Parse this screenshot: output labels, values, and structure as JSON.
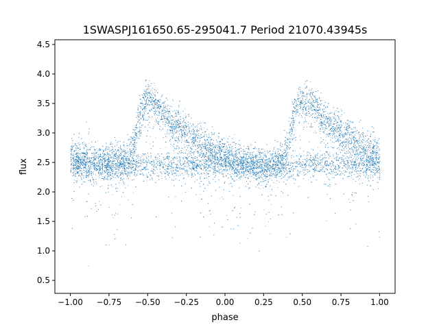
{
  "chart_data": {
    "type": "scatter",
    "title": "1SWASPJ161650.65-295041.7 Period 21070.43945s",
    "xlabel": "phase",
    "ylabel": "flux",
    "xlim": [
      -1.1,
      1.1
    ],
    "ylim": [
      0.28,
      4.58
    ],
    "x_ticks": [
      -1.0,
      -0.75,
      -0.5,
      -0.25,
      0.0,
      0.25,
      0.5,
      0.75,
      1.0
    ],
    "x_tick_labels": [
      "−1.00",
      "−0.75",
      "−0.50",
      "−0.25",
      "0.00",
      "0.25",
      "0.50",
      "0.75",
      "1.00"
    ],
    "y_ticks": [
      0.5,
      1.0,
      1.5,
      2.0,
      2.5,
      3.0,
      3.5,
      4.0,
      4.5
    ],
    "y_tick_labels": [
      "0.5",
      "1.0",
      "1.5",
      "2.0",
      "2.5",
      "3.0",
      "3.5",
      "4.0",
      "4.5"
    ],
    "grid": false,
    "legend": "none",
    "point_color": "#1f77b4",
    "series": [
      {
        "phase": [
          -1.0,
          -0.9,
          -0.8,
          -0.7,
          -0.62,
          -0.58,
          -0.55,
          -0.5,
          -0.45,
          -0.4,
          -0.35,
          -0.3,
          -0.25,
          -0.2,
          -0.15,
          -0.1,
          -0.05,
          0.0,
          0.1,
          0.2,
          0.3,
          0.38,
          0.42,
          0.45,
          0.5,
          0.55,
          0.6,
          0.65,
          0.7,
          0.75,
          0.8,
          0.85,
          0.9,
          0.95,
          1.0
        ],
        "flux": [
          2.6,
          2.55,
          2.5,
          2.55,
          2.6,
          2.95,
          3.4,
          3.55,
          3.5,
          3.35,
          3.2,
          3.1,
          3.0,
          2.9,
          2.85,
          2.75,
          2.7,
          2.6,
          2.5,
          2.45,
          2.45,
          2.6,
          2.95,
          3.4,
          3.55,
          3.5,
          3.35,
          3.2,
          3.1,
          3.0,
          2.95,
          2.85,
          2.75,
          2.7,
          2.65
        ],
        "baseline_flux": 2.45,
        "point_count": 15000
      }
    ]
  }
}
